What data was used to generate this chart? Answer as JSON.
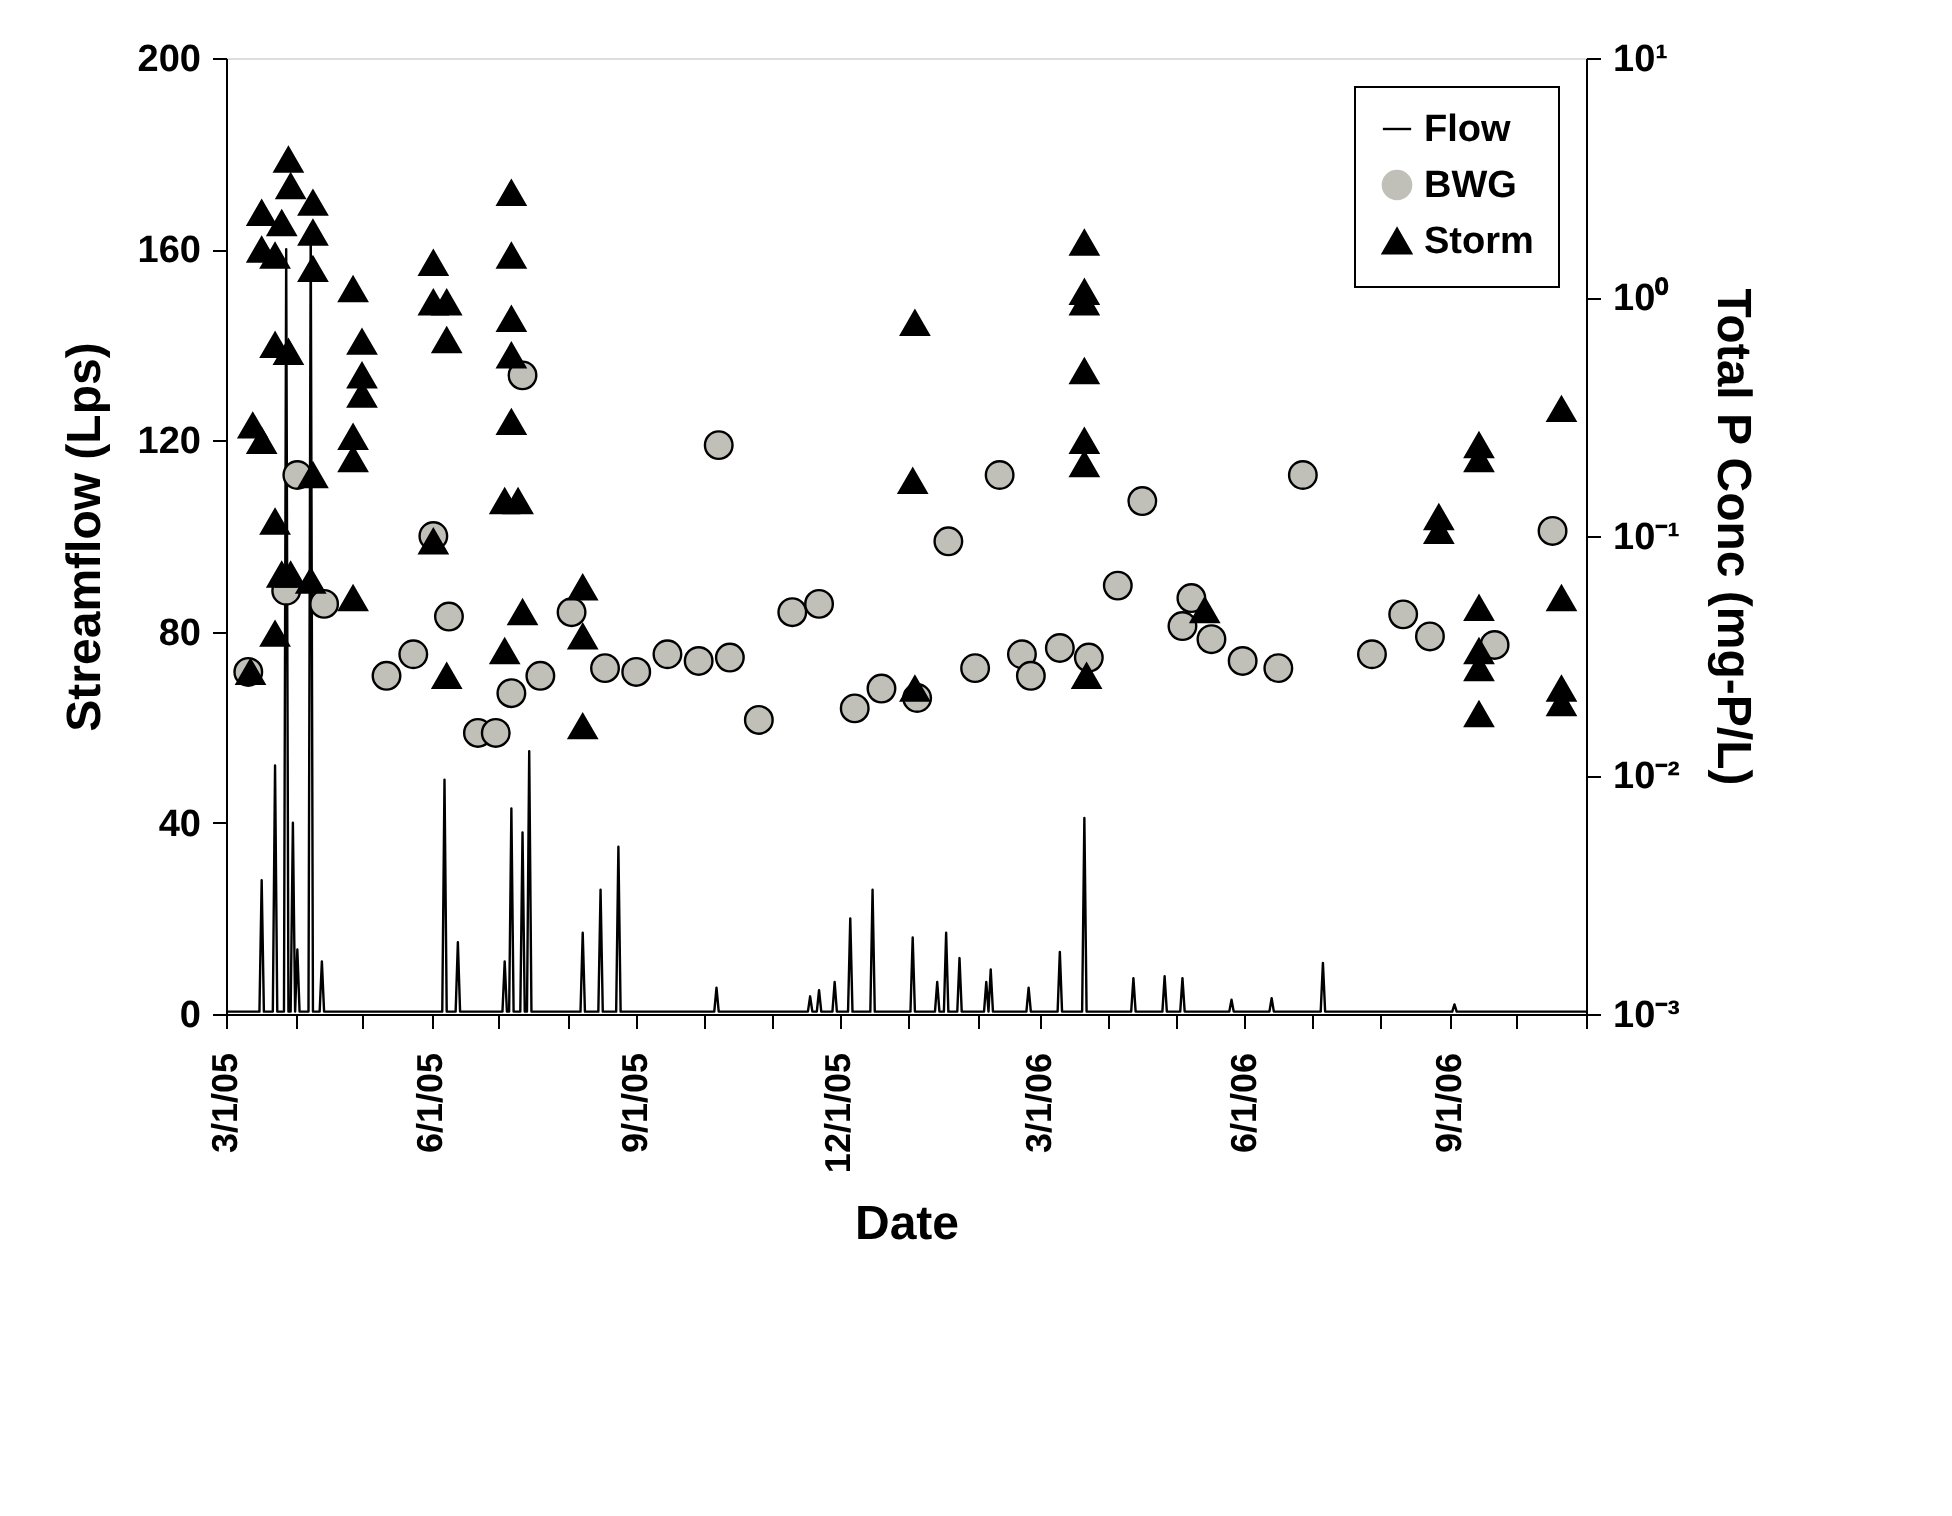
{
  "chart_data": {
    "type": "line",
    "xlabel": "Date",
    "ylabel": "Streamflow (Lps)",
    "y2label": "Total P Conc (mg-P/L)",
    "xlim": [
      "2005-03-01",
      "2006-11-01"
    ],
    "xticks": [
      {
        "value": "2005-03-01",
        "label": "3/1/05"
      },
      {
        "value": "2005-04-01",
        "label": null
      },
      {
        "value": "2005-05-01",
        "label": null
      },
      {
        "value": "2005-06-01",
        "label": "6/1/05"
      },
      {
        "value": "2005-07-01",
        "label": null
      },
      {
        "value": "2005-08-01",
        "label": null
      },
      {
        "value": "2005-09-01",
        "label": "9/1/05"
      },
      {
        "value": "2005-10-01",
        "label": null
      },
      {
        "value": "2005-11-01",
        "label": null
      },
      {
        "value": "2005-12-01",
        "label": "12/1/05"
      },
      {
        "value": "2006-01-01",
        "label": null
      },
      {
        "value": "2006-02-01",
        "label": null
      },
      {
        "value": "2006-03-01",
        "label": "3/1/06"
      },
      {
        "value": "2006-04-01",
        "label": null
      },
      {
        "value": "2006-05-01",
        "label": null
      },
      {
        "value": "2006-06-01",
        "label": "6/1/06"
      },
      {
        "value": "2006-07-01",
        "label": null
      },
      {
        "value": "2006-08-01",
        "label": null
      },
      {
        "value": "2006-09-01",
        "label": "9/1/06"
      },
      {
        "value": "2006-10-01",
        "label": null
      },
      {
        "value": "2006-11-01",
        "label": null
      }
    ],
    "ylim": [
      0,
      200
    ],
    "yticks": [
      0,
      40,
      80,
      120,
      160,
      200
    ],
    "y2lim": [
      0.001,
      10
    ],
    "y2ticks": [
      {
        "value": 0.001,
        "label": "10⁻³"
      },
      {
        "value": 0.01,
        "label": "10⁻²"
      },
      {
        "value": 0.1,
        "label": "10⁻¹"
      },
      {
        "value": 1,
        "label": "10⁰"
      },
      {
        "value": 10,
        "label": "10¹"
      }
    ],
    "log": "y2",
    "legend": "top right",
    "series": [
      {
        "name": "Flow",
        "color": "#000000",
        "line_style": "solid",
        "x": [
          "2005-03-01",
          "2005-03-16",
          "2005-03-17",
          "2005-03-18",
          "2005-03-22",
          "2005-03-23",
          "2005-03-24",
          "2005-03-27",
          "2005-03-28",
          "2005-03-29",
          "2005-03-30",
          "2005-03-31",
          "2005-04-01",
          "2005-04-02",
          "2005-04-03",
          "2005-04-07",
          "2005-04-08",
          "2005-04-09",
          "2005-04-12",
          "2005-04-13",
          "2005-04-14",
          "2005-06-06",
          "2005-06-07",
          "2005-06-08",
          "2005-06-12",
          "2005-06-13",
          "2005-06-14",
          "2005-07-03",
          "2005-07-04",
          "2005-07-05",
          "2005-07-06",
          "2005-07-07",
          "2005-07-08",
          "2005-07-11",
          "2005-07-12",
          "2005-07-13",
          "2005-07-14",
          "2005-07-15",
          "2005-07-16",
          "2005-08-07",
          "2005-08-08",
          "2005-08-09",
          "2005-08-15",
          "2005-08-16",
          "2005-08-17",
          "2005-08-23",
          "2005-08-24",
          "2005-08-25",
          "2005-10-06",
          "2005-10-07",
          "2005-10-08",
          "2005-11-17",
          "2005-11-18",
          "2005-11-19",
          "2005-11-21",
          "2005-11-22",
          "2005-11-23",
          "2005-11-28",
          "2005-11-29",
          "2005-11-30",
          "2005-12-05",
          "2005-12-06",
          "2005-12-07",
          "2005-12-15",
          "2005-12-16",
          "2005-12-17",
          "2006-01-02",
          "2006-01-03",
          "2006-01-04",
          "2006-01-13",
          "2006-01-14",
          "2006-01-15",
          "2006-01-17",
          "2006-01-18",
          "2006-01-19",
          "2006-01-23",
          "2006-01-24",
          "2006-01-25",
          "2006-02-04",
          "2006-02-05",
          "2006-02-06",
          "2006-02-07",
          "2006-02-08",
          "2006-02-23",
          "2006-02-24",
          "2006-02-25",
          "2006-03-09",
          "2006-03-10",
          "2006-03-11",
          "2006-03-20",
          "2006-03-21",
          "2006-03-22",
          "2006-04-11",
          "2006-04-12",
          "2006-04-13",
          "2006-04-25",
          "2006-04-26",
          "2006-04-27",
          "2006-05-03",
          "2006-05-04",
          "2006-05-05",
          "2006-05-25",
          "2006-05-26",
          "2006-05-27",
          "2006-06-12",
          "2006-06-13",
          "2006-06-14",
          "2006-07-05",
          "2006-07-06",
          "2006-07-07",
          "2006-09-02",
          "2006-09-03",
          "2006-09-04",
          "2006-11-01"
        ],
        "values": [
          0.5,
          0.5,
          28,
          0.5,
          0.5,
          52,
          0.5,
          0.5,
          160,
          0.5,
          0.5,
          40,
          0.5,
          13.5,
          0.5,
          0.5,
          165,
          0.5,
          0.5,
          11,
          0.5,
          0.5,
          49,
          0.5,
          0.5,
          15,
          0.5,
          0.5,
          11,
          0.5,
          0.5,
          43,
          0.5,
          0.5,
          38,
          0.5,
          0.5,
          55,
          0.5,
          0.5,
          17,
          0.5,
          0.5,
          26,
          0.5,
          0.5,
          35,
          0.5,
          0.5,
          5.5,
          0.5,
          0.5,
          3.7,
          0.5,
          0.5,
          5,
          0.5,
          0.5,
          6.7,
          0.5,
          0.5,
          20,
          0.5,
          0.5,
          26,
          0.5,
          0.5,
          16,
          0.5,
          0.5,
          6.7,
          0.5,
          0.5,
          17,
          0.5,
          0.5,
          11.7,
          0.5,
          0.5,
          6.7,
          0.5,
          9.3,
          0.5,
          0.5,
          5.5,
          0.5,
          0.5,
          13,
          0.5,
          0.5,
          41,
          0.5,
          0.5,
          7.5,
          0.5,
          0.5,
          7.9,
          0.5,
          0.5,
          7.5,
          0.5,
          0.5,
          3,
          0.5,
          0.5,
          3.3,
          0.5,
          0.5,
          10.7,
          0.5,
          0.5,
          2,
          0.5,
          0.5
        ]
      },
      {
        "name": "BWG",
        "type": "scatter",
        "axis": "y2",
        "color": "#c0c0b8",
        "marker": "circle",
        "x": [
          "2005-03-11",
          "2005-03-28",
          "2005-04-02",
          "2005-04-14",
          "2005-05-12",
          "2005-05-24",
          "2005-06-02",
          "2005-06-09",
          "2005-06-22",
          "2005-06-30",
          "2005-07-07",
          "2005-07-12",
          "2005-07-20",
          "2005-08-03",
          "2005-08-18",
          "2005-09-01",
          "2005-09-15",
          "2005-09-29",
          "2005-10-08",
          "2005-10-13",
          "2005-10-26",
          "2005-11-10",
          "2005-11-22",
          "2005-12-08",
          "2005-12-20",
          "2006-01-05",
          "2006-01-19",
          "2006-01-31",
          "2006-02-11",
          "2006-02-21",
          "2006-02-25",
          "2006-03-10",
          "2006-03-23",
          "2006-04-05",
          "2006-04-16",
          "2006-05-04",
          "2006-05-08",
          "2006-05-17",
          "2006-05-31",
          "2006-06-16",
          "2006-06-27",
          "2006-07-28",
          "2006-08-11",
          "2006-08-23",
          "2006-09-21",
          "2006-10-17"
        ],
        "values": [
          0.027,
          0.059,
          0.18,
          0.052,
          0.026,
          0.032,
          0.1,
          0.046,
          0.015,
          0.015,
          0.022,
          0.47,
          0.026,
          0.048,
          0.028,
          0.027,
          0.032,
          0.03,
          0.24,
          0.031,
          0.017,
          0.048,
          0.052,
          0.019,
          0.023,
          0.021,
          0.095,
          0.028,
          0.18,
          0.032,
          0.026,
          0.034,
          0.031,
          0.062,
          0.14,
          0.042,
          0.055,
          0.037,
          0.03,
          0.028,
          0.18,
          0.032,
          0.047,
          0.038,
          0.035,
          0.105
        ]
      },
      {
        "name": "Storm",
        "type": "scatter",
        "axis": "y2",
        "color": "#000000",
        "marker": "triangle",
        "x": [
          "2005-03-12",
          "2005-03-13",
          "2005-03-17",
          "2005-03-17",
          "2005-03-17",
          "2005-03-23",
          "2005-03-23",
          "2005-03-23",
          "2005-03-23",
          "2005-03-26",
          "2005-03-26",
          "2005-03-29",
          "2005-03-29",
          "2005-03-30",
          "2005-03-30",
          "2005-04-08",
          "2005-04-09",
          "2005-04-09",
          "2005-04-09",
          "2005-04-09",
          "2005-04-27",
          "2005-04-27",
          "2005-04-27",
          "2005-04-27",
          "2005-05-01",
          "2005-05-01",
          "2005-05-01",
          "2005-06-02",
          "2005-06-02",
          "2005-06-02",
          "2005-06-08",
          "2005-06-08",
          "2005-06-08",
          "2005-07-04",
          "2005-07-04",
          "2005-07-07",
          "2005-07-07",
          "2005-07-07",
          "2005-07-07",
          "2005-07-07",
          "2005-07-10",
          "2005-07-12",
          "2005-08-08",
          "2005-08-08",
          "2005-08-08",
          "2006-01-03",
          "2006-01-04",
          "2006-01-04",
          "2006-03-21",
          "2006-03-21",
          "2006-03-21",
          "2006-03-21",
          "2006-03-21",
          "2006-03-21",
          "2006-03-22",
          "2006-05-14",
          "2006-08-27",
          "2006-08-27",
          "2006-09-14",
          "2006-09-14",
          "2006-09-14",
          "2006-09-14",
          "2006-09-14",
          "2006-09-14",
          "2006-10-21",
          "2006-10-21",
          "2006-10-21",
          "2006-10-21"
        ],
        "values": [
          0.027,
          0.29,
          0.25,
          2.25,
          1.58,
          1.49,
          0.63,
          0.115,
          0.039,
          2.04,
          0.069,
          3.76,
          0.59,
          2.91,
          0.069,
          0.065,
          2.48,
          1.86,
          1.31,
          0.18,
          1.08,
          0.26,
          0.21,
          0.055,
          0.65,
          0.47,
          0.39,
          1.39,
          0.95,
          0.095,
          0.95,
          0.66,
          0.026,
          0.14,
          0.033,
          2.73,
          1.49,
          0.81,
          0.57,
          0.3,
          0.14,
          0.048,
          0.061,
          0.038,
          0.016,
          0.17,
          0.78,
          0.023,
          1.69,
          1.05,
          0.95,
          0.49,
          0.25,
          0.2,
          0.026,
          0.049,
          0.12,
          0.105,
          0.24,
          0.21,
          0.05,
          0.033,
          0.028,
          0.018,
          0.34,
          0.055,
          0.023,
          0.02
        ]
      }
    ]
  }
}
